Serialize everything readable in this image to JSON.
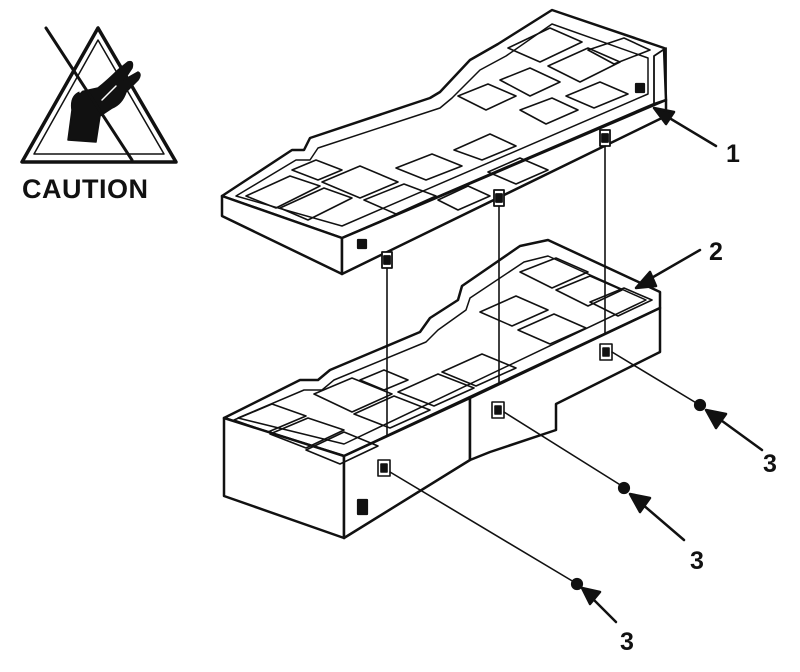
{
  "caution": {
    "label": "CAUTION",
    "symbol": "esd-hand-warning-icon"
  },
  "callouts": {
    "part_1": "1",
    "part_2": "2",
    "part_3_screw_a": "3",
    "part_3_screw_b": "3",
    "part_3_screw_c": "3"
  },
  "colors": {
    "ink": "#111111",
    "paper": "#ffffff"
  }
}
